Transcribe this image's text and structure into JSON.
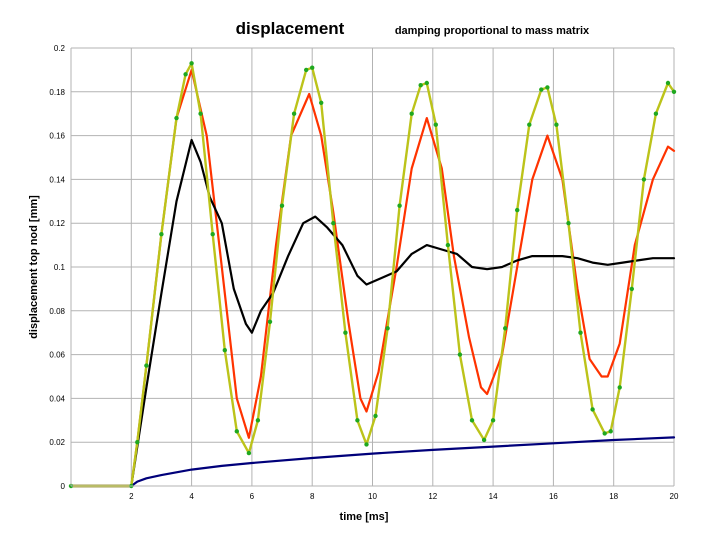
{
  "chart_data": {
    "type": "line",
    "title": "displacement",
    "subtitle": "damping proportional to mass matrix",
    "xlabel": "time [ms]",
    "ylabel": "displacement top nod [mm]",
    "xlim": [
      0,
      20
    ],
    "ylim": [
      0,
      0.2
    ],
    "xticks": [
      2,
      4,
      6,
      8,
      10,
      12,
      14,
      16,
      18,
      20
    ],
    "yticks": [
      0,
      0.02,
      0.04,
      0.06,
      0.08,
      0.1,
      0.12,
      0.14,
      0.16,
      0.18,
      0.2
    ],
    "grid": true,
    "legend": "none",
    "series": [
      {
        "color": "#ff3300",
        "width": 2.2,
        "x": [
          0,
          2.0,
          2.2,
          2.5,
          3.0,
          3.5,
          4.0,
          4.5,
          5.0,
          5.5,
          5.9,
          6.3,
          6.8,
          7.3,
          7.9,
          8.3,
          8.7,
          9.2,
          9.6,
          9.8,
          10.2,
          10.8,
          11.3,
          11.8,
          12.3,
          12.7,
          13.2,
          13.6,
          13.8,
          14.3,
          14.8,
          15.3,
          15.8,
          16.3,
          16.8,
          17.2,
          17.6,
          17.8,
          18.2,
          18.7,
          19.3,
          19.8,
          20.0
        ],
        "y": [
          0,
          0,
          0.02,
          0.055,
          0.115,
          0.168,
          0.19,
          0.16,
          0.1,
          0.04,
          0.022,
          0.05,
          0.11,
          0.16,
          0.179,
          0.16,
          0.125,
          0.075,
          0.04,
          0.034,
          0.052,
          0.1,
          0.145,
          0.168,
          0.145,
          0.105,
          0.068,
          0.045,
          0.042,
          0.06,
          0.1,
          0.14,
          0.16,
          0.14,
          0.09,
          0.058,
          0.05,
          0.05,
          0.065,
          0.11,
          0.14,
          0.155,
          0.153
        ]
      },
      {
        "color": "#000000",
        "width": 2.2,
        "x": [
          0,
          2.0,
          2.2,
          2.5,
          3.0,
          3.5,
          4.0,
          4.3,
          4.6,
          5.0,
          5.4,
          5.8,
          6.0,
          6.3,
          6.7,
          7.2,
          7.7,
          8.1,
          8.5,
          9.0,
          9.5,
          9.8,
          10.3,
          10.8,
          11.3,
          11.8,
          12.3,
          12.8,
          13.3,
          13.8,
          14.3,
          14.8,
          15.3,
          15.8,
          16.3,
          16.8,
          17.3,
          17.8,
          18.3,
          18.8,
          19.3,
          19.8,
          20.0
        ],
        "y": [
          0,
          0,
          0.018,
          0.045,
          0.088,
          0.13,
          0.158,
          0.148,
          0.132,
          0.12,
          0.09,
          0.074,
          0.07,
          0.08,
          0.088,
          0.105,
          0.12,
          0.123,
          0.118,
          0.11,
          0.096,
          0.092,
          0.095,
          0.098,
          0.106,
          0.11,
          0.108,
          0.106,
          0.1,
          0.099,
          0.1,
          0.103,
          0.105,
          0.105,
          0.105,
          0.104,
          0.102,
          0.101,
          0.102,
          0.103,
          0.104,
          0.104,
          0.104
        ]
      },
      {
        "color": "#00007a",
        "width": 2.2,
        "x": [
          0,
          2.0,
          2.2,
          2.5,
          3.0,
          4.0,
          5.0,
          6.0,
          8.0,
          10.0,
          12.0,
          14.0,
          16.0,
          18.0,
          20.0
        ],
        "y": [
          0,
          0,
          0.002,
          0.0035,
          0.005,
          0.0075,
          0.0092,
          0.0105,
          0.0128,
          0.0148,
          0.0165,
          0.018,
          0.0195,
          0.021,
          0.0222
        ]
      },
      {
        "color": "#bcc31a",
        "width": 2.4,
        "markers": true,
        "markerColor": "#1fa81f",
        "x": [
          0,
          2.0,
          2.2,
          2.5,
          3.0,
          3.5,
          3.8,
          4.0,
          4.3,
          4.7,
          5.1,
          5.5,
          5.9,
          6.2,
          6.6,
          7.0,
          7.4,
          7.8,
          8.0,
          8.3,
          8.7,
          9.1,
          9.5,
          9.8,
          10.1,
          10.5,
          10.9,
          11.3,
          11.6,
          11.8,
          12.1,
          12.5,
          12.9,
          13.3,
          13.7,
          14.0,
          14.4,
          14.8,
          15.2,
          15.6,
          15.8,
          16.1,
          16.5,
          16.9,
          17.3,
          17.7,
          17.9,
          18.2,
          18.6,
          19.0,
          19.4,
          19.8,
          20.0
        ],
        "y": [
          0,
          0,
          0.02,
          0.055,
          0.115,
          0.168,
          0.188,
          0.193,
          0.17,
          0.115,
          0.062,
          0.025,
          0.015,
          0.03,
          0.075,
          0.128,
          0.17,
          0.19,
          0.191,
          0.175,
          0.12,
          0.07,
          0.03,
          0.019,
          0.032,
          0.072,
          0.128,
          0.17,
          0.183,
          0.184,
          0.165,
          0.11,
          0.06,
          0.03,
          0.021,
          0.03,
          0.072,
          0.126,
          0.165,
          0.181,
          0.182,
          0.165,
          0.12,
          0.07,
          0.035,
          0.024,
          0.025,
          0.045,
          0.09,
          0.14,
          0.17,
          0.184,
          0.18
        ]
      }
    ]
  }
}
